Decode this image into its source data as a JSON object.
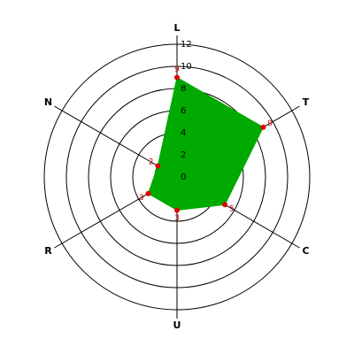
{
  "chart_data": {
    "type": "radar",
    "categories": [
      "L",
      "T",
      "C",
      "U",
      "R",
      "N"
    ],
    "values": [
      9,
      9,
      5,
      3,
      3,
      2
    ],
    "color": "#00aa00",
    "point_color": "#dd0000",
    "ylim": [
      0,
      12
    ],
    "yticks": [
      0,
      2,
      4,
      6,
      8,
      10,
      12
    ],
    "grid": true
  }
}
